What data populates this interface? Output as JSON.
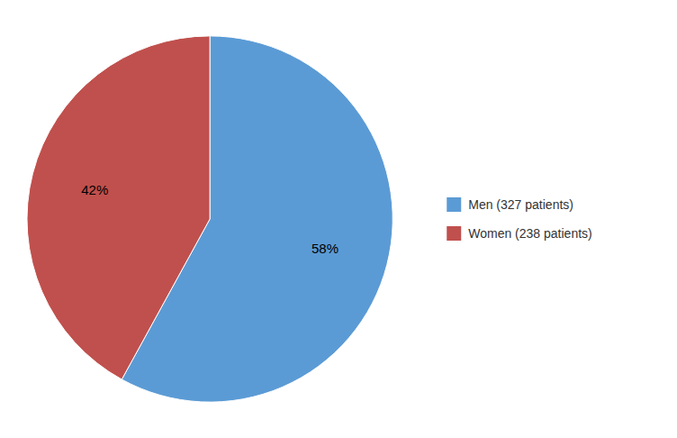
{
  "chart_data": {
    "type": "pie",
    "categories": [
      "Men (327 patients)",
      "Women (238 patients)"
    ],
    "values": [
      58,
      42
    ],
    "value_labels": [
      "58%",
      "42%"
    ],
    "colors": [
      "#5B9BD5",
      "#C0504D"
    ],
    "data_labels": true,
    "legend": "right"
  }
}
